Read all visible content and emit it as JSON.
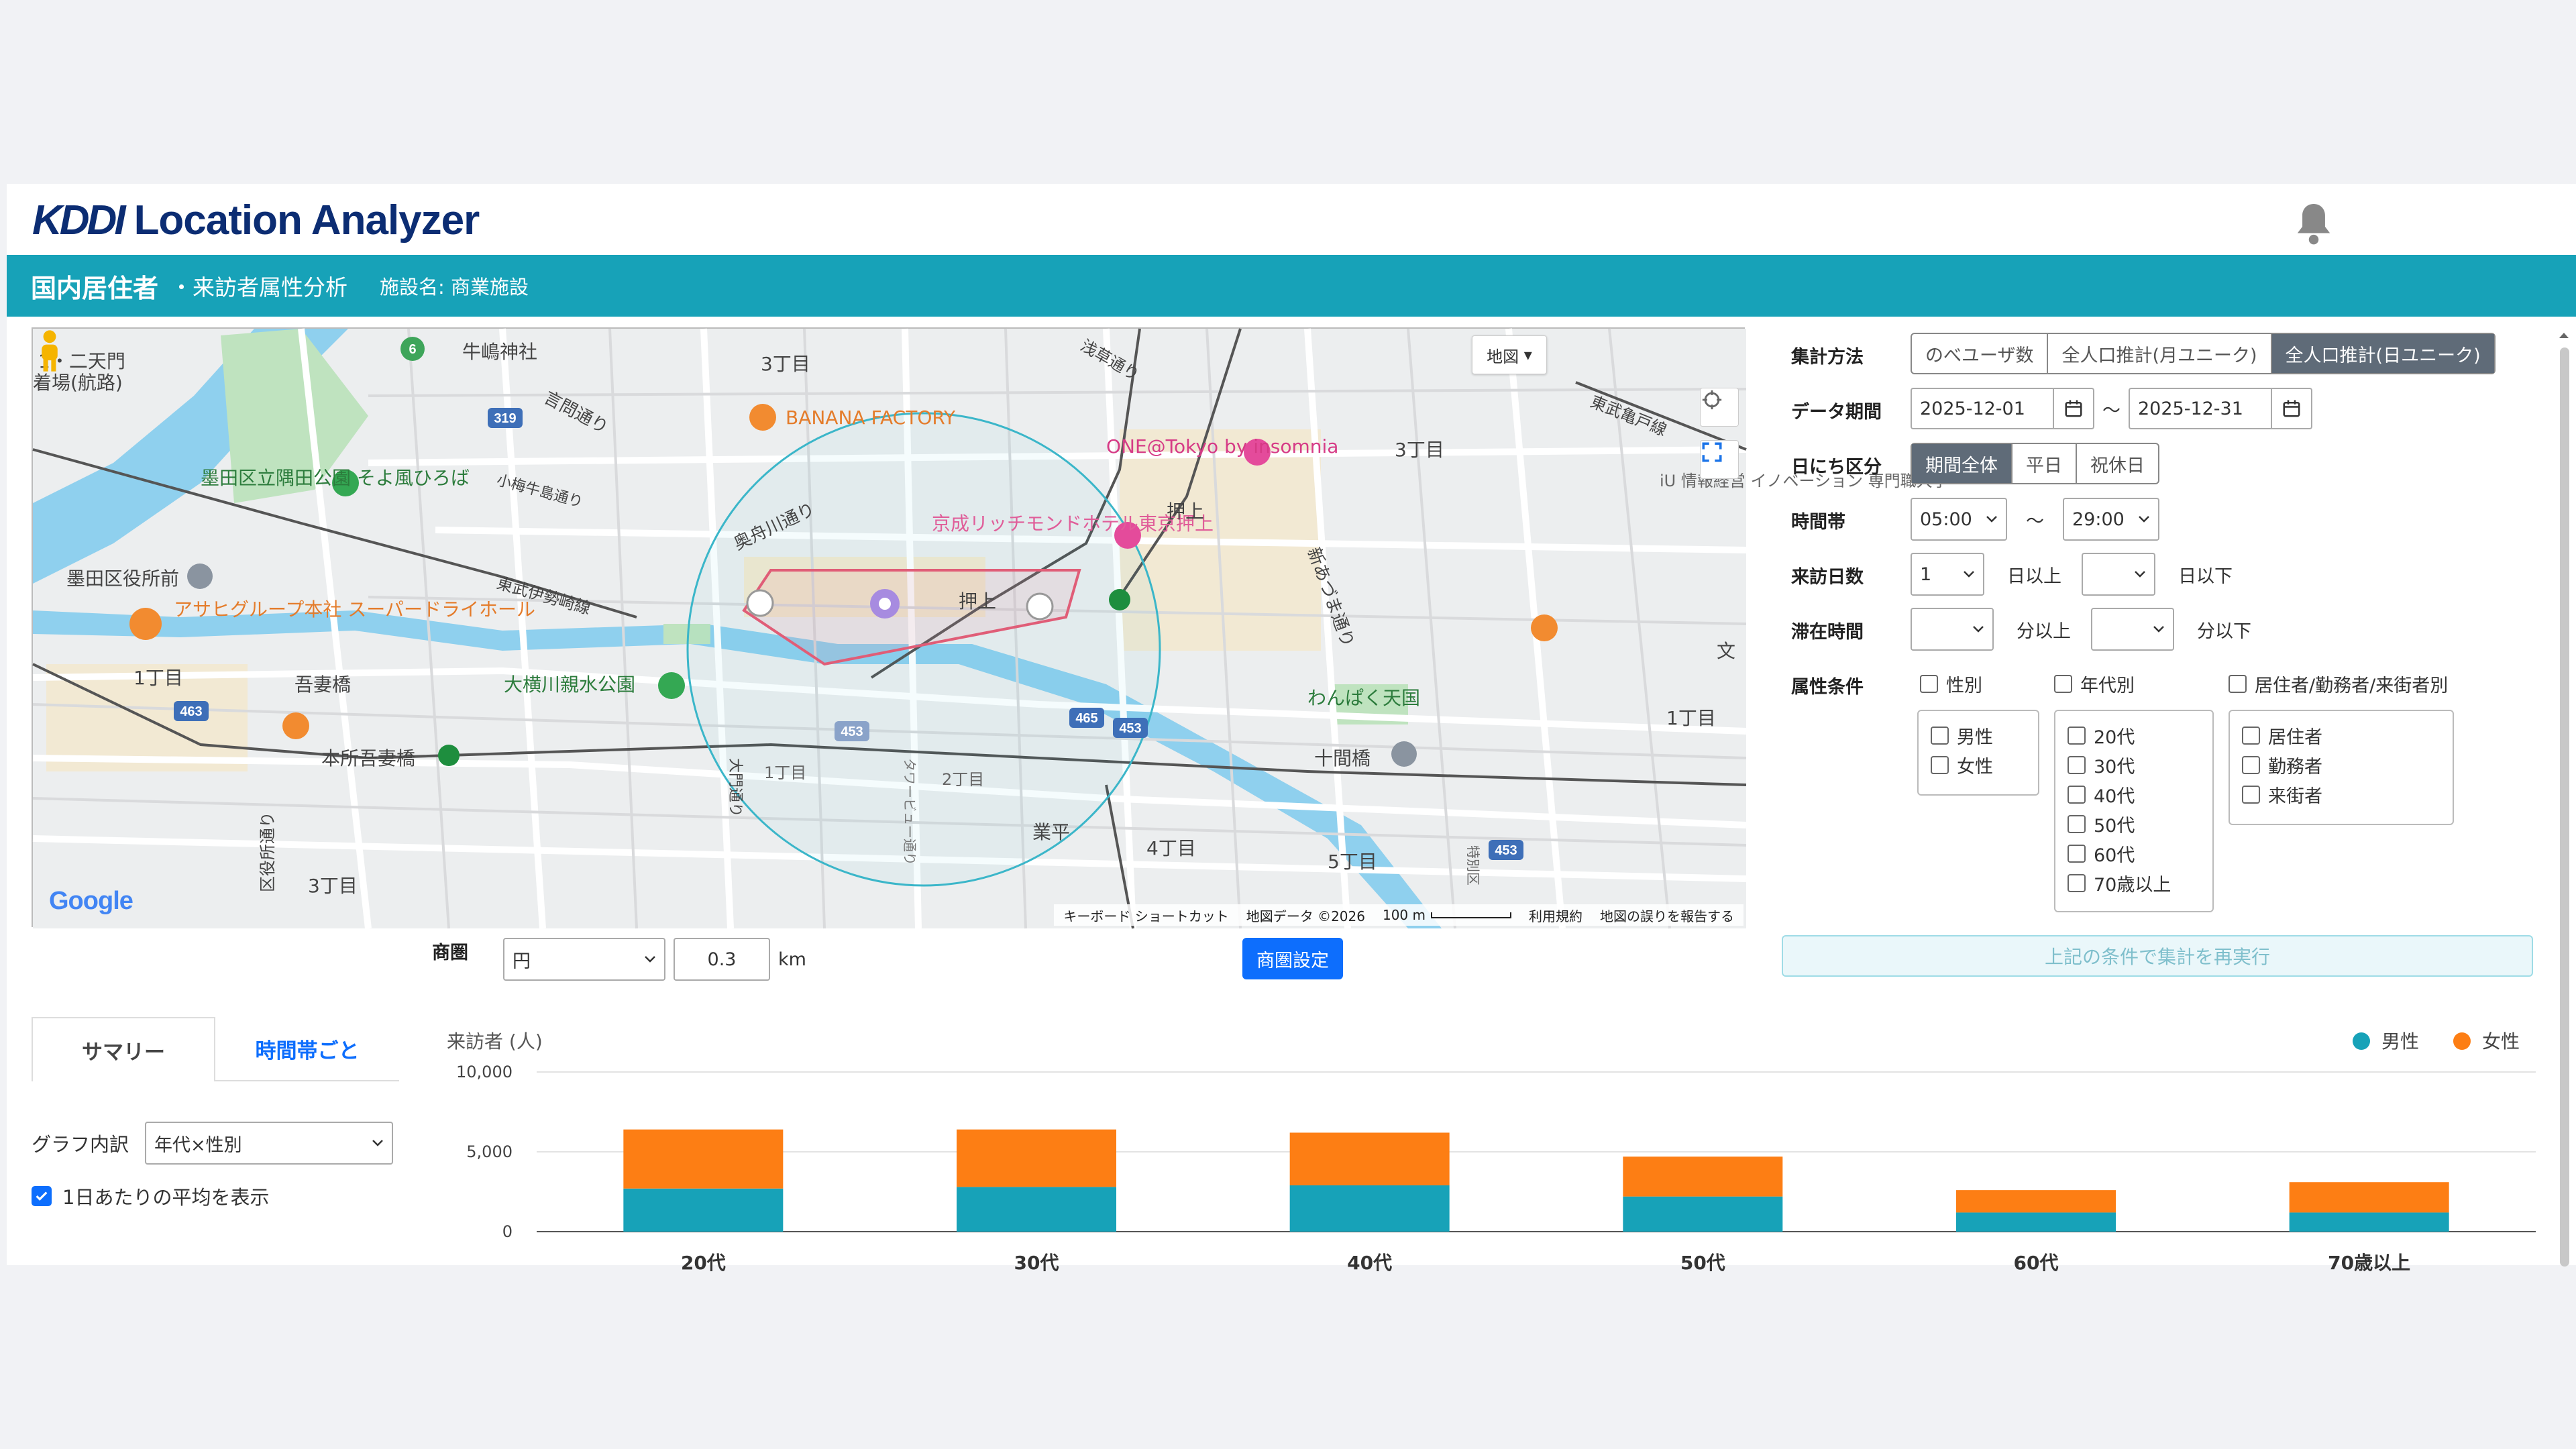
{
  "header": {
    "logo_mark": "KDDI",
    "logo_text": "Location Analyzer"
  },
  "title_bar": {
    "main": "国内居住者",
    "sub": "・来訪者属性分析",
    "facility": "施設名: 商業施設"
  },
  "map": {
    "type_button": "地図",
    "google": "Google",
    "attribution": {
      "keyboard": "キーボード ショートカット",
      "data": "地図データ ©2026",
      "scale": "100 m",
      "terms": "利用規約",
      "report": "地図の誤りを報告する"
    },
    "labels": [
      "牛嶋神社",
      "3丁目",
      "言問通り",
      "BANANA FACTORY",
      "ONE@Tokyo by insomnia",
      "3丁目",
      "墨田区立隅田公園 そよ風ひろば",
      "小梅牛島通り",
      "奥舟川通り",
      "京成リッチモンドホテル東京押上",
      "押上",
      "墨田区役所前",
      "東武伊勢崎線",
      "押上",
      "アサヒグループ本社 スーパードライホール",
      "1丁目",
      "吾妻橋",
      "大横川親水公園",
      "わんぱく天国",
      "1丁目",
      "本所吾妻橋",
      "十間橋",
      "1丁目",
      "2丁目",
      "業平",
      "4丁目",
      "5丁目",
      "3丁目",
      "新あづま通り",
      "東武亀戸線",
      "iU 情報経営 イノベーション 専門職大学",
      "浅草通り",
      "区役所通り",
      "大門通り",
      "タワービュー通り",
      "特別区",
      "文",
      "1・二天門",
      "着場(航路)"
    ],
    "road_badges": [
      "319",
      "463",
      "453",
      "465",
      "453",
      "453",
      "6"
    ]
  },
  "trade_area": {
    "label": "商圏",
    "shape": "円",
    "radius": "0.3",
    "unit": "km",
    "button": "商圏設定"
  },
  "filters": {
    "aggregation": {
      "label": "集計方法",
      "options": [
        "のべユーザ数",
        "全人口推計(月ユニーク)",
        "全人口推計(日ユニーク)"
      ],
      "selected": "全人口推計(日ユニーク)"
    },
    "period": {
      "label": "データ期間",
      "from": "2025-12-01",
      "sep": "〜",
      "to": "2025-12-31"
    },
    "day_type": {
      "label": "日にち区分",
      "options": [
        "期間全体",
        "平日",
        "祝休日"
      ],
      "selected": "期間全体"
    },
    "time_range": {
      "label": "時間帯",
      "from": "05:00",
      "sep": "〜",
      "to": "29:00"
    },
    "visit_days": {
      "label": "来訪日数",
      "min": "1",
      "min_suffix": "日以上",
      "max": "",
      "max_suffix": "日以下"
    },
    "stay_time": {
      "label": "滞在時間",
      "min": "",
      "min_suffix": "分以上",
      "max": "",
      "max_suffix": "分以下"
    },
    "attributes": {
      "label": "属性条件",
      "gender": {
        "label": "性別",
        "options": [
          "男性",
          "女性"
        ]
      },
      "age": {
        "label": "年代別",
        "options": [
          "20代",
          "30代",
          "40代",
          "50代",
          "60代",
          "70歳以上"
        ]
      },
      "residence": {
        "label": "居住者/勤務者/来街者別",
        "options": [
          "居住者",
          "勤務者",
          "来街者"
        ]
      }
    },
    "rerun_button": "上記の条件で集計を再実行"
  },
  "tabs": [
    {
      "label": "サマリー",
      "active": true
    },
    {
      "label": "時間帯ごと",
      "active": false
    }
  ],
  "graph_breakdown": {
    "label": "グラフ内訳",
    "value": "年代×性別"
  },
  "daily_average": {
    "label": "1日あたりの平均を表示",
    "checked": true
  },
  "chart_data": {
    "type": "bar",
    "stacked": true,
    "ylabel": "来訪者 (人)",
    "ylim": [
      0,
      10000
    ],
    "yticks": [
      "10,000",
      "5,000",
      "0"
    ],
    "categories": [
      "20代",
      "30代",
      "40代",
      "50代",
      "60代",
      "70歳以上"
    ],
    "series": [
      {
        "name": "男性",
        "color": "#17a2b8",
        "values": [
          2700,
          2800,
          2900,
          2200,
          1200,
          1200
        ]
      },
      {
        "name": "女性",
        "color": "#fd7e14",
        "values": [
          3700,
          3600,
          3300,
          2500,
          1400,
          1900
        ]
      }
    ],
    "legend": "top-right",
    "grid": true
  }
}
